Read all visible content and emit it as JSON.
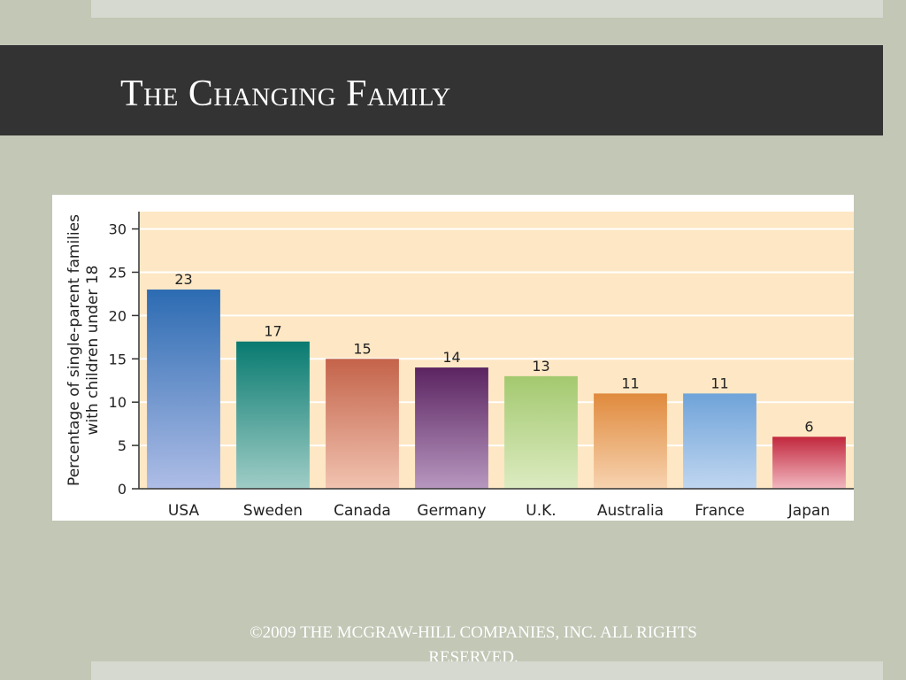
{
  "slide": {
    "title": "The Changing Family",
    "footer": "©2009 THE MCGRAW-HILL COMPANIES, INC. ALL RIGHTS RESERVED."
  },
  "colors": {
    "background": "#c2c7b6",
    "title_bar": "#333333",
    "plot_background": "#fde7c4"
  },
  "chart_data": {
    "type": "bar",
    "title": "",
    "xlabel": "",
    "ylabel": "Percentage of single-parent families with children under 18",
    "ylim": [
      0,
      32
    ],
    "yticks": [
      0,
      5,
      10,
      15,
      20,
      25,
      30
    ],
    "grid": true,
    "categories": [
      "USA",
      "Sweden",
      "Canada",
      "Germany",
      "U.K.",
      "Australia",
      "France",
      "Japan"
    ],
    "values": [
      23,
      17,
      15,
      14,
      13,
      11,
      11,
      6
    ],
    "bar_colors": [
      [
        "#2c6bb2",
        "#aebde6"
      ],
      [
        "#087a70",
        "#9fcdc6"
      ],
      [
        "#c4634a",
        "#f1c3b0"
      ],
      [
        "#5b2461",
        "#b797bf"
      ],
      [
        "#a3c96f",
        "#dcebc1"
      ],
      [
        "#e08a3d",
        "#f7d3b0"
      ],
      [
        "#6fa3d9",
        "#c0d6f0"
      ],
      [
        "#c2283e",
        "#f1b8c0"
      ]
    ]
  }
}
